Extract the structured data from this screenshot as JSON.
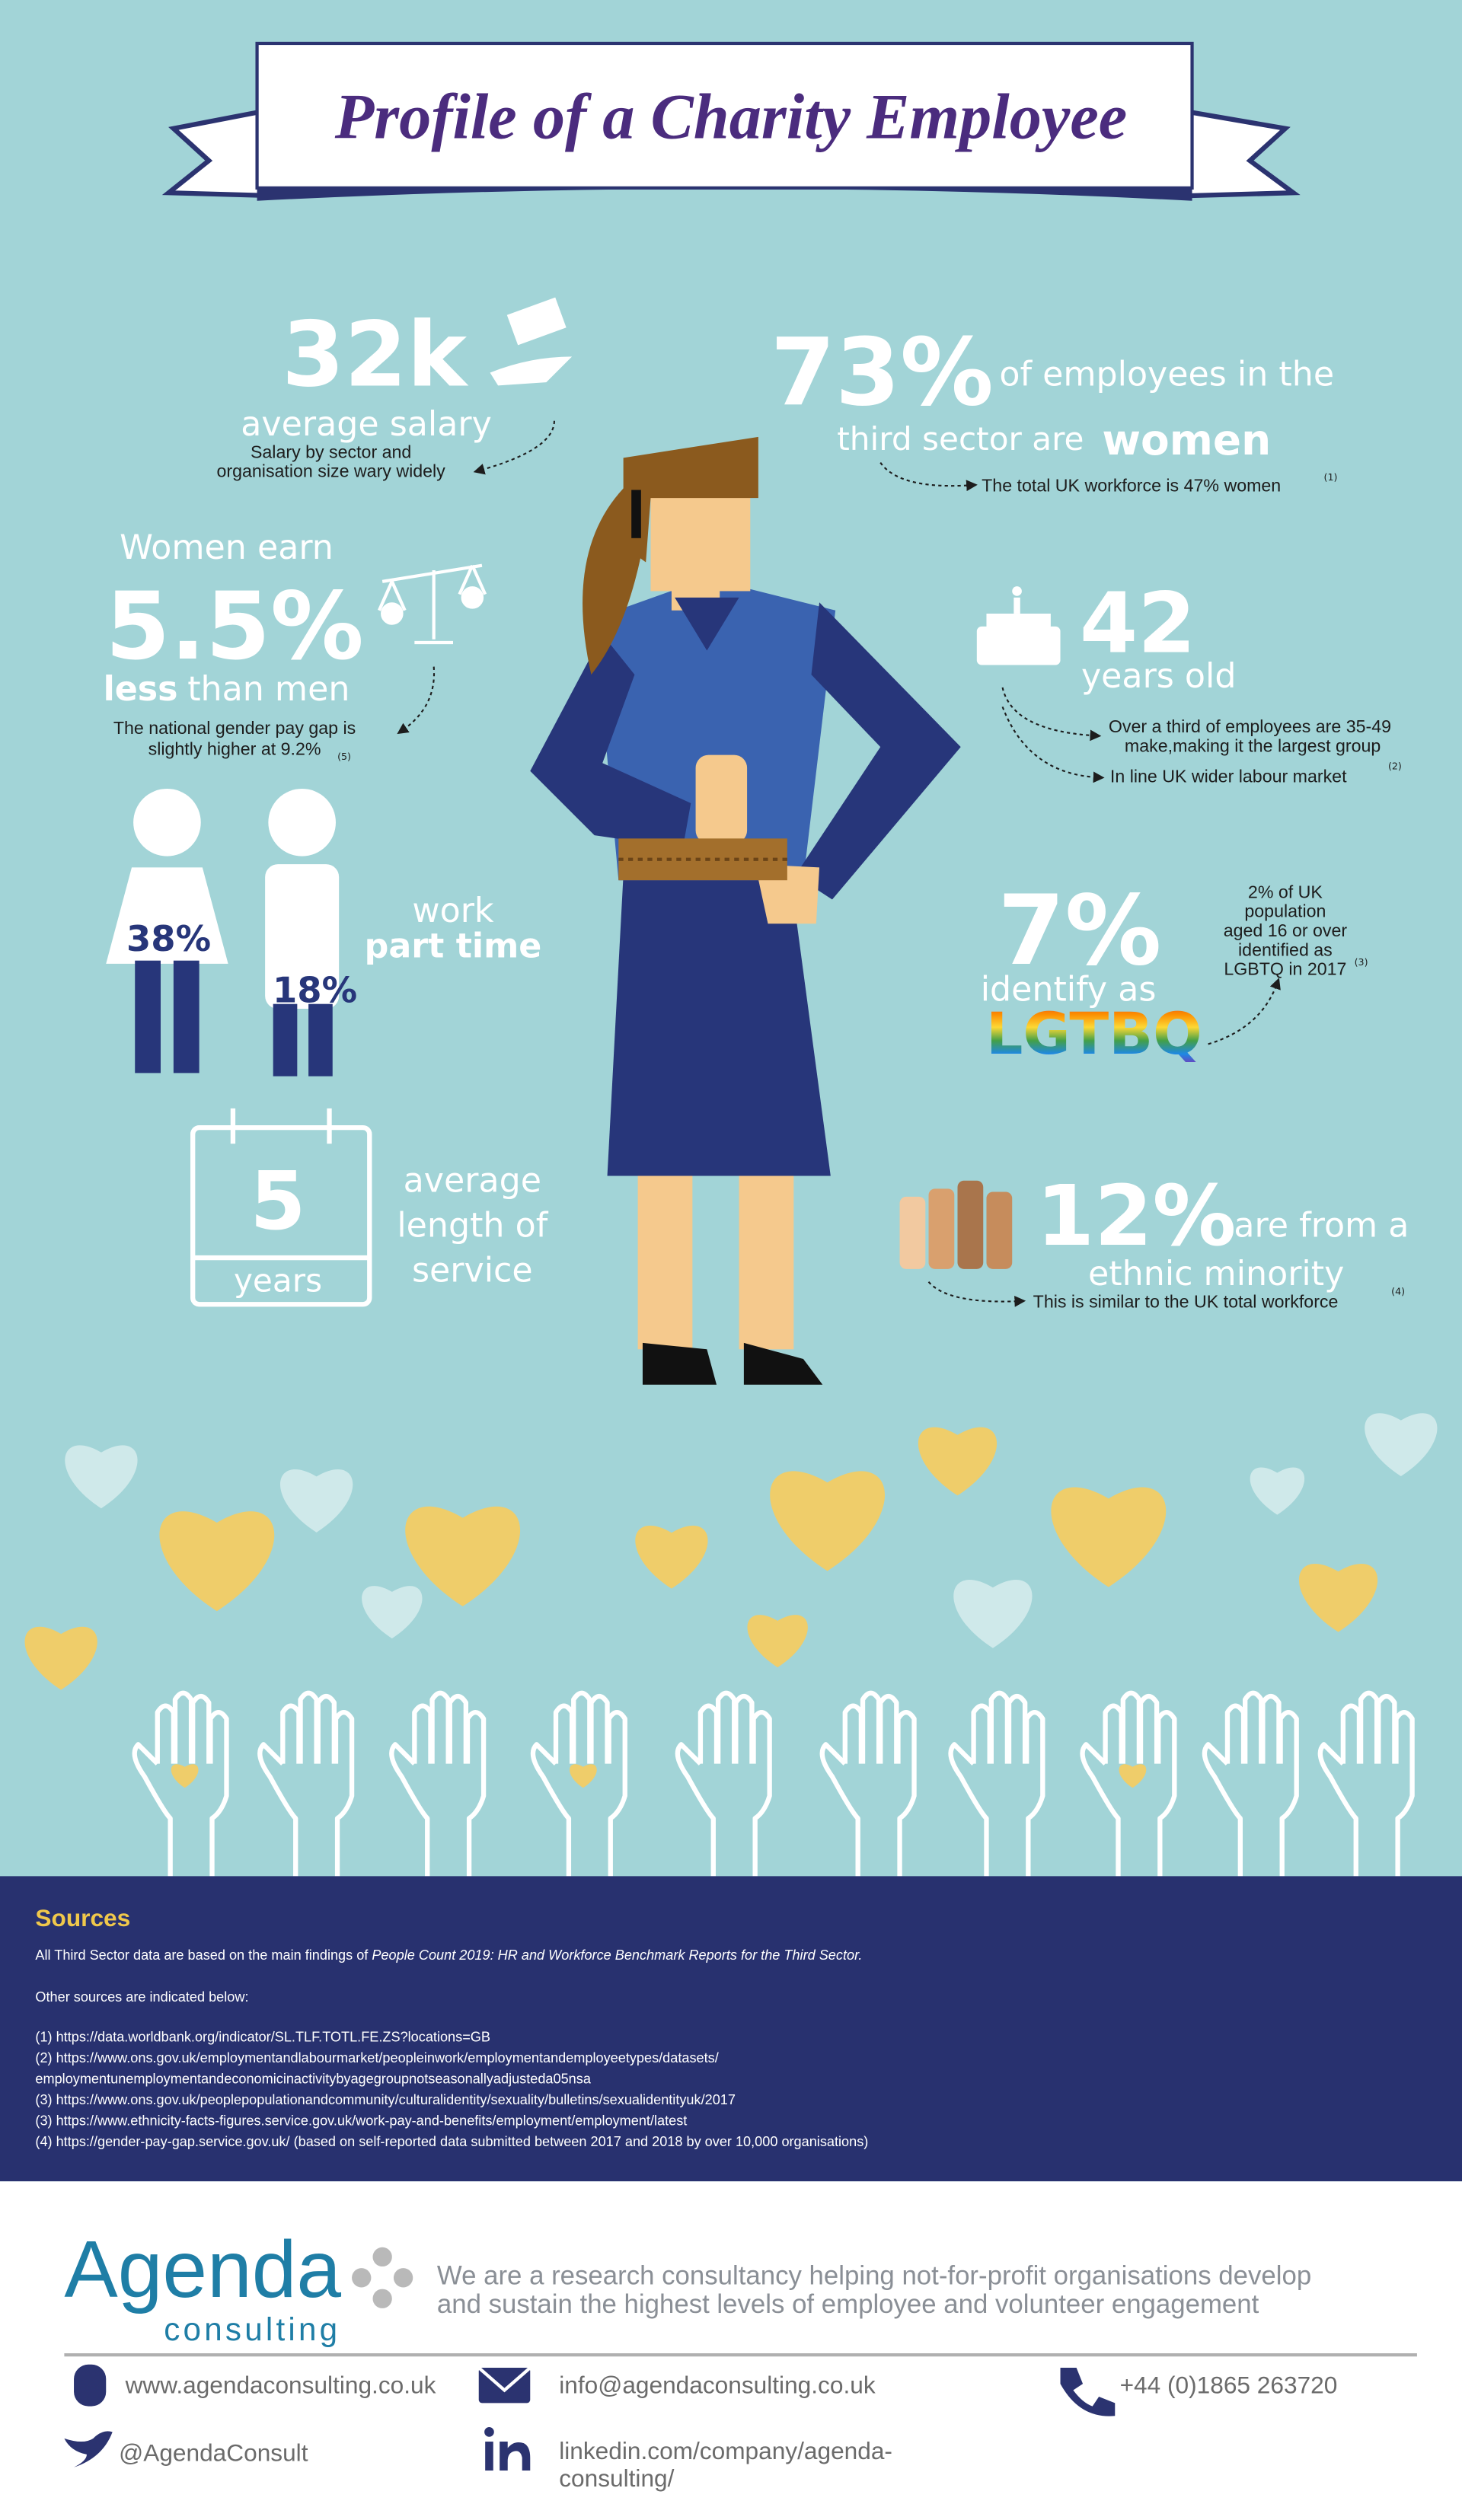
{
  "header": {
    "title": "Profile of a Charity Employee"
  },
  "salary": {
    "value": "32k",
    "label": "average salary",
    "note": [
      "Salary by sector and",
      "organisation size wary widely"
    ]
  },
  "women": {
    "value": "73%",
    "label_1": "of employees in the",
    "label_2": "third sector are",
    "highlight": "women",
    "note": "The total UK workforce is 47% women",
    "ref": "(1)"
  },
  "pay_gap": {
    "intro": "Women earn",
    "value": "5.5%",
    "highlight": "less",
    "label": "than men",
    "note": [
      "The national gender pay gap is",
      "slightly higher at 9.2%"
    ],
    "ref": "(5)"
  },
  "age": {
    "value": "42",
    "label": "years old",
    "note_1": [
      "Over a third of employees are 35-49",
      "make,making it the largest group"
    ],
    "note_2": "In line UK wider labour market",
    "ref": "(2)"
  },
  "part_time": {
    "women": "38%",
    "men": "18%",
    "label_1": "work",
    "label_2": "part time"
  },
  "lgbtq": {
    "value": "7%",
    "label": "identify as",
    "highlight": "LGTBQ",
    "note": [
      "2% of UK",
      "population",
      "aged 16 or over",
      "identified as",
      "LGBTQ in 2017"
    ],
    "ref": "(3)"
  },
  "service": {
    "value": "5",
    "unit": "years",
    "label": [
      "average",
      "length of",
      "service"
    ]
  },
  "ethnic": {
    "value": "12%",
    "label_1": "are from a",
    "label_2": "ethnic minority",
    "note": "This is similar to the UK total workforce",
    "ref": "(4)"
  },
  "sources": {
    "title": "Sources",
    "intro": "All Third Sector data are based on the main findings of ",
    "report": "People Count 2019: HR and Workforce Benchmark Reports for the Third Sector.",
    "other": "Other sources are indicated below:",
    "lines": [
      "(1) https://data.worldbank.org/indicator/SL.TLF.TOTL.FE.ZS?locations=GB",
      "(2) https://www.ons.gov.uk/employmentandlabourmarket/peopleinwork/employmentandemployeetypes/datasets/",
      "employmentunemploymentandeconomicinactivitybyagegroupnotseasonallyadjustedа05nsa",
      "(3) https://www.ons.gov.uk/peoplepopulationandcommunity/culturalidentity/sexuality/bulletins/sexualidentityuk/2017",
      "(3) https://www.ethnicity-facts-figures.service.gov.uk/work-pay-and-benefits/employment/employment/latest",
      "(4) https://gender-pay-gap.service.gov.uk/ (based on self-reported data submitted between 2017 and 2018 by over 10,000 organisations)"
    ]
  },
  "footer": {
    "brand": "Agenda",
    "brand_sub": "consulting",
    "tagline": [
      "We are a research consultancy helping not-for-profit organisations develop",
      "and sustain the highest levels of employee and volunteer engagement"
    ],
    "website": "www.agendaconsulting.co.uk",
    "email": "info@agendaconsulting.co.uk",
    "phone": "+44 (0)1865 263720",
    "twitter": "@AgendaConsult",
    "linkedin": [
      "linkedin.com/company/agenda-",
      "consulting/"
    ]
  }
}
